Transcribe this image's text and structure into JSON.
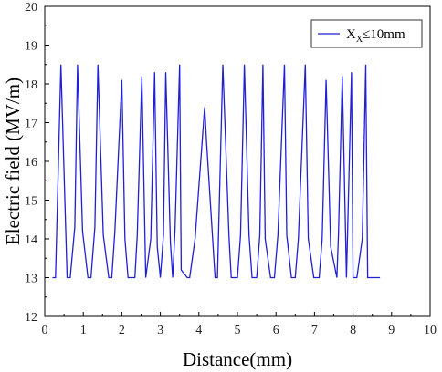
{
  "chart_data": {
    "type": "line",
    "xlabel": "Distance(mm)",
    "ylabel": "Electric field (MV/m)",
    "xlim": [
      0,
      10
    ],
    "ylim": [
      12,
      20
    ],
    "x_ticks": [
      "0",
      "1",
      "2",
      "3",
      "4",
      "5",
      "6",
      "7",
      "8",
      "9",
      "10"
    ],
    "y_ticks": [
      "12",
      "13",
      "14",
      "15",
      "16",
      "17",
      "18",
      "19",
      "20"
    ],
    "grid": false,
    "legend_position": "top-right",
    "series": [
      {
        "name": "X",
        "name_subscript": "X",
        "name_suffix": "≤10mm",
        "color": "#1f1fd6",
        "x": [
          0.2,
          0.28,
          0.42,
          0.58,
          0.66,
          0.78,
          0.85,
          0.98,
          1.12,
          1.2,
          1.3,
          1.38,
          1.52,
          1.66,
          1.74,
          1.82,
          2.0,
          2.08,
          2.16,
          2.34,
          2.4,
          2.52,
          2.62,
          2.75,
          2.85,
          2.92,
          3.0,
          3.08,
          3.14,
          3.26,
          3.32,
          3.38,
          3.5,
          3.54,
          3.7,
          3.76,
          3.9,
          4.15,
          4.2,
          4.42,
          4.48,
          4.62,
          4.78,
          4.84,
          5.0,
          5.08,
          5.18,
          5.3,
          5.38,
          5.5,
          5.58,
          5.66,
          5.72,
          5.86,
          5.96,
          6.05,
          6.22,
          6.28,
          6.4,
          6.5,
          6.58,
          6.76,
          6.84,
          6.98,
          7.12,
          7.2,
          7.3,
          7.42,
          7.58,
          7.62,
          7.72,
          7.83,
          7.96,
          8.0,
          8.1,
          8.24,
          8.33,
          8.38,
          8.7
        ],
        "y": [
          13,
          13,
          18.5,
          13,
          13,
          14.3,
          18.5,
          14.2,
          13,
          13,
          14.3,
          18.5,
          14.1,
          13,
          13,
          14.2,
          18.1,
          14,
          13,
          13,
          14.1,
          18.2,
          13,
          14,
          18.3,
          13.8,
          13,
          14.1,
          18.3,
          13.9,
          13,
          14.2,
          18.5,
          13.2,
          13,
          13,
          14,
          17.4,
          16.5,
          13,
          13,
          18.5,
          14.1,
          13,
          13,
          14.1,
          18.5,
          14.1,
          13,
          13,
          14.1,
          18.5,
          14,
          13,
          13,
          14.1,
          18.5,
          14.1,
          13,
          13,
          14,
          18.5,
          14,
          13,
          13,
          14,
          18.1,
          13.8,
          13,
          14.1,
          18.2,
          13,
          18.3,
          13,
          13,
          14,
          18.5,
          13,
          13
        ]
      }
    ]
  }
}
